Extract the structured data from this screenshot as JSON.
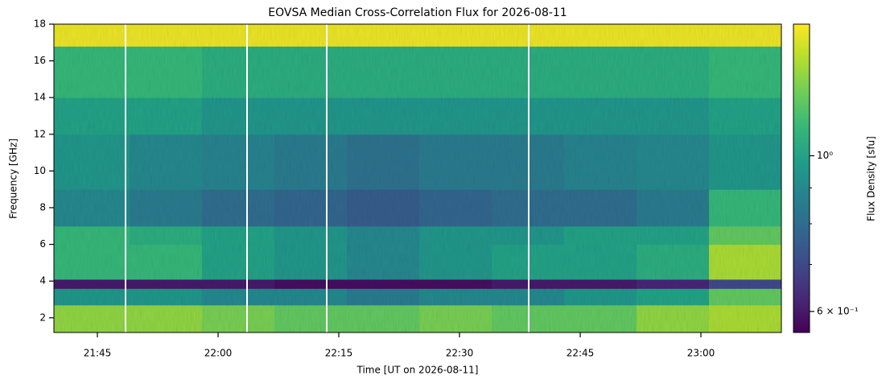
{
  "chart_data": {
    "type": "heatmap",
    "title": "EOVSA Median Cross-Correlation Flux for 2026-08-11",
    "xlabel": "Time [UT on 2026-08-11]",
    "ylabel": "Frequency [GHz]",
    "colorbar_label": "Flux Density [sfu]",
    "xlim": [
      1299.6,
      1390
    ],
    "xticks": [
      {
        "value": 1305,
        "label": "21:45"
      },
      {
        "value": 1320,
        "label": "22:00"
      },
      {
        "value": 1335,
        "label": "22:15"
      },
      {
        "value": 1350,
        "label": "22:30"
      },
      {
        "value": 1365,
        "label": "22:45"
      },
      {
        "value": 1380,
        "label": "23:00"
      }
    ],
    "ylim": [
      1.2,
      18
    ],
    "yticks": [
      2,
      4,
      6,
      8,
      10,
      12,
      14,
      16,
      18
    ],
    "clim": [
      0.56,
      1.54
    ],
    "color_scale": "log",
    "colormap": "viridis",
    "cticks": [
      {
        "value": 1,
        "label": "10⁰"
      },
      {
        "value": 0.6,
        "label": "6 × 10⁻¹"
      }
    ],
    "cminorticks": [
      0.7,
      0.8,
      0.9
    ],
    "x_edges": [
      1299.6,
      1309,
      1318,
      1327,
      1336,
      1345,
      1354,
      1363,
      1372,
      1381,
      1390
    ],
    "y_edges": [
      1.2,
      2.7,
      3.6,
      4.1,
      6,
      7,
      9,
      12,
      14,
      16.8,
      18
    ],
    "z": [
      [
        1.3,
        1.3,
        1.25,
        1.2,
        1.2,
        1.25,
        1.2,
        1.2,
        1.3,
        1.35
      ],
      [
        0.95,
        0.95,
        0.9,
        0.9,
        0.85,
        0.9,
        0.9,
        0.95,
        1.0,
        1.2
      ],
      [
        0.6,
        0.6,
        0.6,
        0.58,
        0.58,
        0.58,
        0.6,
        0.6,
        0.62,
        0.7
      ],
      [
        1.1,
        1.1,
        1.0,
        0.95,
        0.9,
        0.95,
        1.0,
        1.0,
        1.05,
        1.35
      ],
      [
        1.1,
        1.05,
        1.0,
        0.95,
        0.9,
        0.95,
        0.95,
        1.0,
        1.0,
        1.2
      ],
      [
        0.9,
        0.85,
        0.8,
        0.78,
        0.75,
        0.78,
        0.8,
        0.8,
        0.85,
        1.1
      ],
      [
        0.95,
        0.9,
        0.88,
        0.85,
        0.82,
        0.85,
        0.85,
        0.88,
        0.9,
        0.95
      ],
      [
        1.0,
        1.0,
        0.95,
        0.95,
        0.95,
        0.95,
        0.95,
        0.95,
        0.95,
        1.0
      ],
      [
        1.1,
        1.1,
        1.05,
        1.05,
        1.05,
        1.05,
        1.05,
        1.05,
        1.05,
        1.1
      ],
      [
        1.5,
        1.5,
        1.5,
        1.5,
        1.5,
        1.5,
        1.5,
        1.5,
        1.5,
        1.5
      ]
    ],
    "gaps": [
      1308.5,
      1323.6,
      1333.5,
      1358.6
    ]
  }
}
